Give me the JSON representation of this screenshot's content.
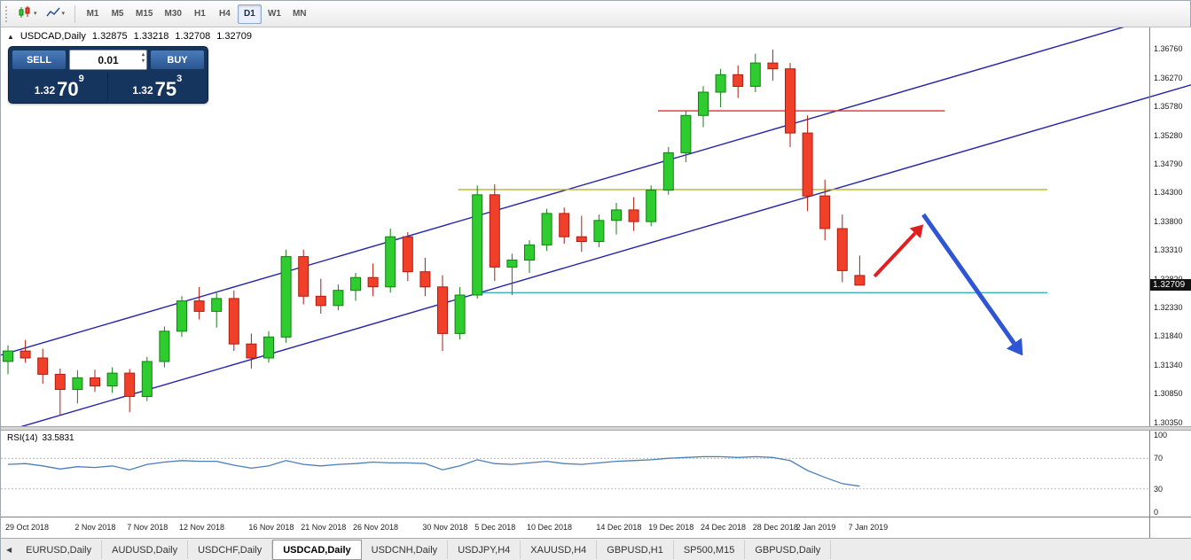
{
  "colors": {
    "up_fill": "#2ecc2e",
    "up_border": "#128212",
    "down_fill": "#f0402a",
    "down_border": "#b01c10",
    "rsi_line": "#4a7ebb",
    "badge_bg": "#111111"
  },
  "toolbar": {
    "timeframes": [
      "M1",
      "M5",
      "M15",
      "M30",
      "H1",
      "H4",
      "D1",
      "W1",
      "MN"
    ],
    "active_timeframe": "D1"
  },
  "chart": {
    "title": {
      "symbol": "USDCAD,Daily",
      "open": "1.32875",
      "high": "1.33218",
      "low": "1.32708",
      "close": "1.32709"
    },
    "trade_panel": {
      "sell_label": "SELL",
      "buy_label": "BUY",
      "lot_size": "0.01",
      "sell_price": {
        "big_prefix": "1.32",
        "big": "70",
        "sup": "9"
      },
      "buy_price": {
        "big_prefix": "1.32",
        "big": "75",
        "sup": "3"
      }
    },
    "price_scale": {
      "ticks": [
        "1.36760",
        "1.36270",
        "1.35780",
        "1.35280",
        "1.34790",
        "1.34300",
        "1.33800",
        "1.33310",
        "1.32820",
        "1.32330",
        "1.31840",
        "1.31340",
        "1.30850",
        "1.30350"
      ],
      "current_price": "1.32709"
    },
    "date_axis": [
      {
        "label": "29 Oct 2018",
        "i": 0
      },
      {
        "label": "2 Nov 2018",
        "i": 4
      },
      {
        "label": "7 Nov 2018",
        "i": 7
      },
      {
        "label": "12 Nov 2018",
        "i": 10
      },
      {
        "label": "16 Nov 2018",
        "i": 14
      },
      {
        "label": "21 Nov 2018",
        "i": 17
      },
      {
        "label": "26 Nov 2018",
        "i": 20
      },
      {
        "label": "30 Nov 2018",
        "i": 24
      },
      {
        "label": "5 Dec 2018",
        "i": 27
      },
      {
        "label": "10 Dec 2018",
        "i": 30
      },
      {
        "label": "14 Dec 2018",
        "i": 34
      },
      {
        "label": "19 Dec 2018",
        "i": 37
      },
      {
        "label": "24 Dec 2018",
        "i": 40
      },
      {
        "label": "28 Dec 2018",
        "i": 43
      },
      {
        "label": "2 Jan 2019",
        "i": 45.5
      },
      {
        "label": "7 Jan 2019",
        "i": 48.5
      }
    ]
  },
  "chart_data": {
    "type": "candlestick",
    "symbol": "USDCAD",
    "timeframe": "Daily",
    "y_axis": {
      "max": 1.3713,
      "min": 1.3029
    },
    "candle_format": [
      "date",
      "open",
      "high",
      "low",
      "close"
    ],
    "candles": [
      [
        "2018-10-29",
        1.314,
        1.3168,
        1.3118,
        1.3158
      ],
      [
        "2018-10-30",
        1.3158,
        1.3177,
        1.3138,
        1.3146
      ],
      [
        "2018-10-31",
        1.3146,
        1.3162,
        1.3102,
        1.3118
      ],
      [
        "2018-11-01",
        1.3118,
        1.3128,
        1.3048,
        1.3092
      ],
      [
        "2018-11-02",
        1.3092,
        1.3125,
        1.3068,
        1.3112
      ],
      [
        "2018-11-05",
        1.3112,
        1.3126,
        1.3088,
        1.3098
      ],
      [
        "2018-11-06",
        1.3098,
        1.313,
        1.3086,
        1.312
      ],
      [
        "2018-11-07",
        1.312,
        1.3127,
        1.3053,
        1.308
      ],
      [
        "2018-11-08",
        1.308,
        1.3148,
        1.3072,
        1.314
      ],
      [
        "2018-11-09",
        1.314,
        1.32,
        1.313,
        1.3192
      ],
      [
        "2018-11-12",
        1.3192,
        1.3252,
        1.3182,
        1.3244
      ],
      [
        "2018-11-13",
        1.3244,
        1.3268,
        1.3212,
        1.3226
      ],
      [
        "2018-11-14",
        1.3226,
        1.3258,
        1.3198,
        1.3248
      ],
      [
        "2018-11-15",
        1.3248,
        1.3262,
        1.3158,
        1.317
      ],
      [
        "2018-11-16",
        1.317,
        1.3188,
        1.3128,
        1.3146
      ],
      [
        "2018-11-19",
        1.3146,
        1.3192,
        1.3138,
        1.3182
      ],
      [
        "2018-11-20",
        1.3182,
        1.3332,
        1.3172,
        1.332
      ],
      [
        "2018-11-21",
        1.332,
        1.3332,
        1.3238,
        1.3252
      ],
      [
        "2018-11-22",
        1.3252,
        1.3282,
        1.3222,
        1.3236
      ],
      [
        "2018-11-23",
        1.3236,
        1.3272,
        1.3228,
        1.3262
      ],
      [
        "2018-11-26",
        1.3262,
        1.3292,
        1.3244,
        1.3284
      ],
      [
        "2018-11-27",
        1.3284,
        1.3308,
        1.3252,
        1.3268
      ],
      [
        "2018-11-28",
        1.3268,
        1.3368,
        1.3258,
        1.3354
      ],
      [
        "2018-11-29",
        1.3354,
        1.3362,
        1.3278,
        1.3294
      ],
      [
        "2018-11-30",
        1.3294,
        1.3318,
        1.3252,
        1.3268
      ],
      [
        "2018-12-03",
        1.3268,
        1.3288,
        1.3158,
        1.3188
      ],
      [
        "2018-12-04",
        1.3188,
        1.3268,
        1.3178,
        1.3254
      ],
      [
        "2018-12-05",
        1.3254,
        1.3442,
        1.3248,
        1.3426
      ],
      [
        "2018-12-06",
        1.3426,
        1.3444,
        1.3278,
        1.3302
      ],
      [
        "2018-12-07",
        1.3302,
        1.3325,
        1.3254,
        1.3314
      ],
      [
        "2018-12-10",
        1.3314,
        1.3348,
        1.3292,
        1.334
      ],
      [
        "2018-12-11",
        1.334,
        1.3402,
        1.333,
        1.3394
      ],
      [
        "2018-12-12",
        1.3394,
        1.3404,
        1.3342,
        1.3354
      ],
      [
        "2018-12-13",
        1.3354,
        1.339,
        1.3328,
        1.3346
      ],
      [
        "2018-12-14",
        1.3346,
        1.3392,
        1.3336,
        1.3382
      ],
      [
        "2018-12-17",
        1.3382,
        1.3412,
        1.3358,
        1.34
      ],
      [
        "2018-12-18",
        1.34,
        1.3422,
        1.3364,
        1.338
      ],
      [
        "2018-12-19",
        1.338,
        1.3442,
        1.3372,
        1.3434
      ],
      [
        "2018-12-20",
        1.3434,
        1.3508,
        1.3426,
        1.3498
      ],
      [
        "2018-12-21",
        1.3498,
        1.357,
        1.3482,
        1.3562
      ],
      [
        "2018-12-24",
        1.3562,
        1.3612,
        1.3542,
        1.3602
      ],
      [
        "2018-12-26",
        1.3602,
        1.3642,
        1.3576,
        1.3632
      ],
      [
        "2018-12-27",
        1.3632,
        1.3648,
        1.3592,
        1.3612
      ],
      [
        "2018-12-28",
        1.3612,
        1.3668,
        1.3602,
        1.3652
      ],
      [
        "2018-12-31",
        1.3652,
        1.3675,
        1.3622,
        1.3642
      ],
      [
        "2019-01-02",
        1.3642,
        1.3652,
        1.3508,
        1.3532
      ],
      [
        "2019-01-03",
        1.3532,
        1.3562,
        1.3398,
        1.3424
      ],
      [
        "2019-01-04",
        1.3424,
        1.3452,
        1.3348,
        1.3368
      ],
      [
        "2019-01-07",
        1.3368,
        1.3392,
        1.3276,
        1.3296
      ],
      [
        "2019-01-08",
        1.32875,
        1.33218,
        1.32708,
        1.32709
      ]
    ],
    "overlays": {
      "channel": [
        {
          "name": "channel-lower",
          "color": "#2222aa",
          "f1": 0,
          "p1": 1.3018,
          "f2": 1.0,
          "p2": 1.3615
        },
        {
          "name": "channel-upper",
          "color": "#2222aa",
          "f1": 0,
          "p1": 1.3151,
          "f2": 1.0,
          "p2": 1.3748
        }
      ],
      "hlines": [
        {
          "name": "resistance-red",
          "color": "#e03030",
          "price": 1.357,
          "i1": 37.4,
          "i2": 53.9
        },
        {
          "name": "resistance-yellow",
          "color": "#b8b820",
          "price": 1.3435,
          "i1": 25.9,
          "i2": 59.8
        },
        {
          "name": "support-teal",
          "color": "#3fb3b3",
          "price": 1.3258,
          "i1": 27.3,
          "i2": 59.8
        }
      ],
      "arrows": [
        {
          "name": "bullish-arrow",
          "color": "#e02020",
          "width": 4,
          "f1": 0.7335,
          "p1": 1.3286,
          "f2": 0.7745,
          "p2": 1.3375
        },
        {
          "name": "bearish-arrow",
          "color": "#2f55d4",
          "width": 5,
          "f1": 0.7745,
          "p1": 1.3392,
          "f2": 0.858,
          "p2": 1.315
        }
      ]
    },
    "rsi": {
      "label": "RSI(14)",
      "value": "33.5831",
      "period": 14,
      "axis": {
        "max": 106,
        "min": -6
      },
      "scale_labels": [
        "100",
        "70",
        "30",
        "0"
      ],
      "level_lines": [
        70,
        30
      ],
      "values": [
        62,
        63,
        60,
        56,
        59,
        58,
        60,
        55,
        62,
        65,
        67,
        66,
        66,
        61,
        57,
        60,
        67,
        62,
        60,
        62,
        63,
        65,
        64,
        64,
        63,
        55,
        60,
        68,
        63,
        62,
        64,
        66,
        63,
        62,
        64,
        66,
        67,
        68,
        70,
        71,
        72,
        72,
        71,
        72,
        71,
        67,
        54,
        45,
        37,
        33.58
      ]
    }
  },
  "tabs": {
    "items": [
      "EURUSD,Daily",
      "AUDUSD,Daily",
      "USDCHF,Daily",
      "USDCAD,Daily",
      "USDCNH,Daily",
      "USDJPY,H4",
      "XAUUSD,H4",
      "GBPUSD,H1",
      "SP500,M15",
      "GBPUSD,Daily"
    ],
    "active": "USDCAD,Daily"
  }
}
